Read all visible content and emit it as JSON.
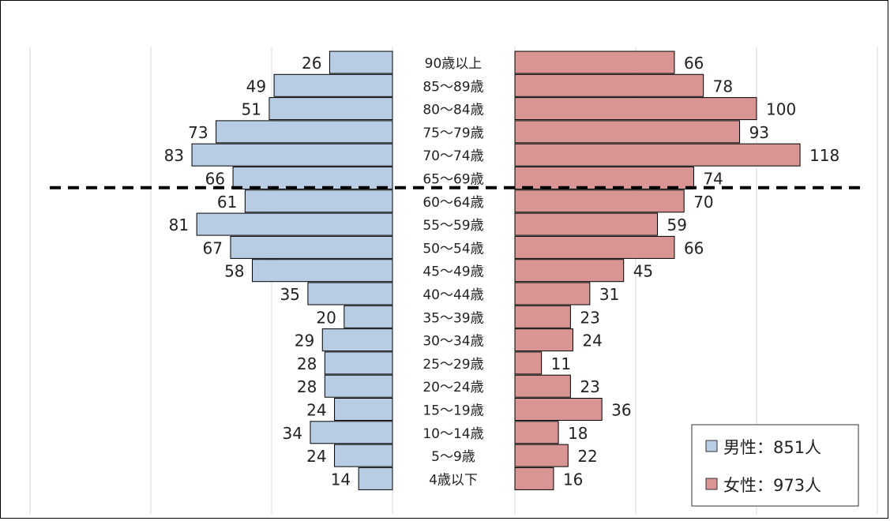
{
  "chart_data": {
    "type": "bar",
    "orientation": "horizontal",
    "layout": "population-pyramid",
    "categories": [
      "90歳以上",
      "85〜89歳",
      "80〜84歳",
      "75〜79歳",
      "70〜74歳",
      "65〜69歳",
      "60〜64歳",
      "55〜59歳",
      "50〜54歳",
      "45〜49歳",
      "40〜44歳",
      "35〜39歳",
      "30〜34歳",
      "25〜29歳",
      "20〜24歳",
      "15〜19歳",
      "10〜14歳",
      "5〜9歳",
      "4歳以下"
    ],
    "series": [
      {
        "name": "男性：851人",
        "color": "#b8cce4",
        "values": [
          26,
          49,
          51,
          73,
          83,
          66,
          61,
          81,
          67,
          58,
          35,
          20,
          29,
          28,
          28,
          24,
          34,
          24,
          14
        ]
      },
      {
        "name": "女性：973人",
        "color": "#d99594",
        "values": [
          66,
          78,
          100,
          93,
          118,
          74,
          70,
          59,
          66,
          45,
          31,
          23,
          24,
          11,
          23,
          36,
          18,
          22,
          16
        ]
      }
    ],
    "xlim": [
      0,
      150
    ],
    "grid": true,
    "legend_position": "bottom-right",
    "reference_line": {
      "style": "dashed",
      "between": [
        "65〜69歳",
        "60〜64歳"
      ]
    }
  }
}
